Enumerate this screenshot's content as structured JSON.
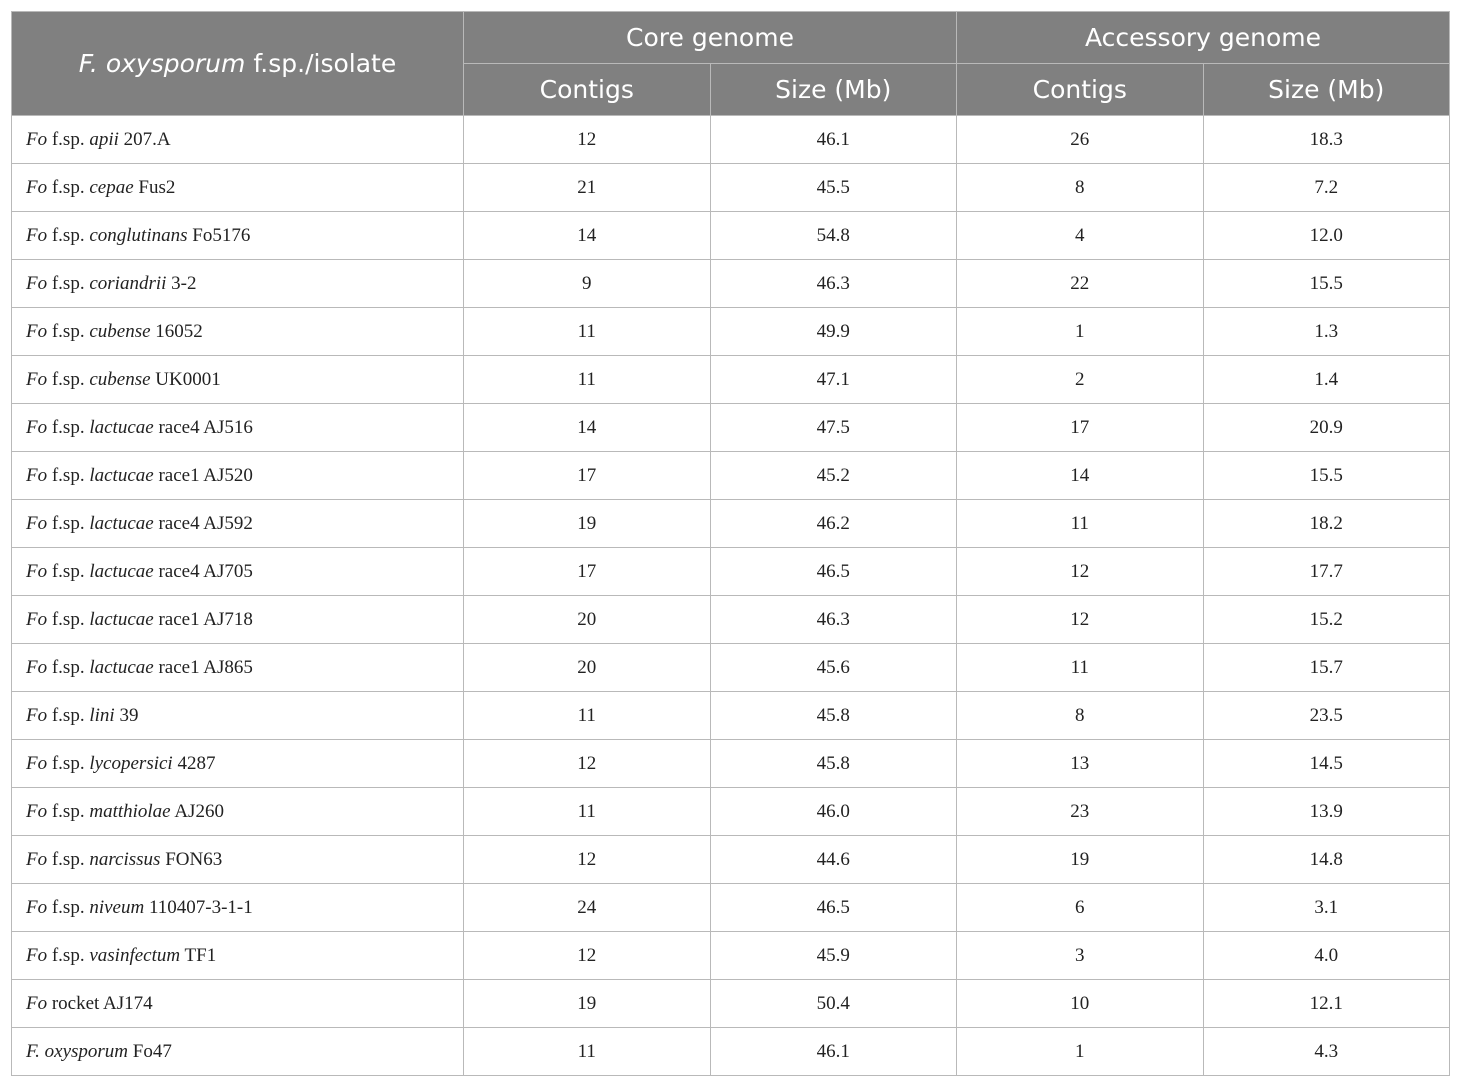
{
  "header": {
    "isolate_italic": "F. oxysporum",
    "isolate_rest": " f.sp./isolate",
    "core_group": "Core genome",
    "accessory_group": "Accessory genome",
    "contigs": "Contigs",
    "size": "Size (Mb)"
  },
  "rows": [
    {
      "genus": "Fo",
      "mid": " f.sp. ",
      "forma": "apii",
      "isolate": " 207.A",
      "core_contigs": "12",
      "core_size": "46.1",
      "acc_contigs": "26",
      "acc_size": "18.3"
    },
    {
      "genus": "Fo",
      "mid": " f.sp. ",
      "forma": "cepae",
      "isolate": " Fus2",
      "core_contigs": "21",
      "core_size": "45.5",
      "acc_contigs": "8",
      "acc_size": "7.2"
    },
    {
      "genus": "Fo",
      "mid": " f.sp. ",
      "forma": "conglutinans",
      "isolate": " Fo5176",
      "core_contigs": "14",
      "core_size": "54.8",
      "acc_contigs": "4",
      "acc_size": "12.0"
    },
    {
      "genus": "Fo",
      "mid": " f.sp. ",
      "forma": "coriandrii",
      "isolate": " 3-2",
      "core_contigs": "9",
      "core_size": "46.3",
      "acc_contigs": "22",
      "acc_size": "15.5"
    },
    {
      "genus": "Fo",
      "mid": " f.sp. ",
      "forma": "cubense",
      "isolate": " 16052",
      "core_contigs": "11",
      "core_size": "49.9",
      "acc_contigs": "1",
      "acc_size": "1.3"
    },
    {
      "genus": "Fo",
      "mid": " f.sp. ",
      "forma": "cubense",
      "isolate": " UK0001",
      "core_contigs": "11",
      "core_size": "47.1",
      "acc_contigs": "2",
      "acc_size": "1.4"
    },
    {
      "genus": "Fo",
      "mid": " f.sp. ",
      "forma": "lactucae",
      "isolate": " race4 AJ516",
      "core_contigs": "14",
      "core_size": "47.5",
      "acc_contigs": "17",
      "acc_size": "20.9"
    },
    {
      "genus": "Fo",
      "mid": " f.sp. ",
      "forma": "lactucae",
      "isolate": " race1 AJ520",
      "core_contigs": "17",
      "core_size": "45.2",
      "acc_contigs": "14",
      "acc_size": "15.5"
    },
    {
      "genus": "Fo",
      "mid": " f.sp. ",
      "forma": "lactucae",
      "isolate": " race4 AJ592",
      "core_contigs": "19",
      "core_size": "46.2",
      "acc_contigs": "11",
      "acc_size": "18.2"
    },
    {
      "genus": "Fo",
      "mid": " f.sp. ",
      "forma": "lactucae",
      "isolate": " race4 AJ705",
      "core_contigs": "17",
      "core_size": "46.5",
      "acc_contigs": "12",
      "acc_size": "17.7"
    },
    {
      "genus": "Fo",
      "mid": " f.sp. ",
      "forma": "lactucae",
      "isolate": " race1 AJ718",
      "core_contigs": "20",
      "core_size": "46.3",
      "acc_contigs": "12",
      "acc_size": "15.2"
    },
    {
      "genus": "Fo",
      "mid": " f.sp. ",
      "forma": "lactucae",
      "isolate": " race1 AJ865",
      "core_contigs": "20",
      "core_size": "45.6",
      "acc_contigs": "11",
      "acc_size": "15.7"
    },
    {
      "genus": "Fo",
      "mid": " f.sp. ",
      "forma": "lini",
      "isolate": " 39",
      "core_contigs": "11",
      "core_size": "45.8",
      "acc_contigs": "8",
      "acc_size": "23.5"
    },
    {
      "genus": "Fo",
      "mid": " f.sp. ",
      "forma": "lycopersici",
      "isolate": " 4287",
      "core_contigs": "12",
      "core_size": "45.8",
      "acc_contigs": "13",
      "acc_size": "14.5"
    },
    {
      "genus": "Fo",
      "mid": " f.sp. ",
      "forma": "matthiolae",
      "isolate": " AJ260",
      "core_contigs": "11",
      "core_size": "46.0",
      "acc_contigs": "23",
      "acc_size": "13.9"
    },
    {
      "genus": "Fo",
      "mid": " f.sp. ",
      "forma": "narcissus",
      "isolate": " FON63",
      "core_contigs": "12",
      "core_size": "44.6",
      "acc_contigs": "19",
      "acc_size": "14.8"
    },
    {
      "genus": "Fo",
      "mid": " f.sp. ",
      "forma": "niveum",
      "isolate": " 110407-3-1-1",
      "core_contigs": "24",
      "core_size": "46.5",
      "acc_contigs": "6",
      "acc_size": "3.1"
    },
    {
      "genus": "Fo",
      "mid": " f.sp. ",
      "forma": "vasinfectum",
      "isolate": " TF1",
      "core_contigs": "12",
      "core_size": "45.9",
      "acc_contigs": "3",
      "acc_size": "4.0"
    },
    {
      "genus": "Fo",
      "mid": " rocket AJ174",
      "forma": "",
      "isolate": "",
      "core_contigs": "19",
      "core_size": "50.4",
      "acc_contigs": "10",
      "acc_size": "12.1"
    },
    {
      "genus": "F. oxysporum",
      "mid": " Fo47",
      "forma": "",
      "isolate": "",
      "core_contigs": "11",
      "core_size": "46.1",
      "acc_contigs": "1",
      "acc_size": "4.3"
    }
  ]
}
